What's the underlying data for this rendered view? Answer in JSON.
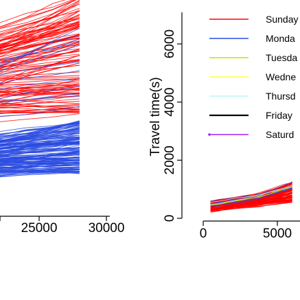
{
  "colors": {
    "Sunday": "#ff0000",
    "Monday": "#2a4be0",
    "Tuesday": "#c8e000",
    "Wednesday": "#ffff40",
    "Thursday": "#b8f5f5",
    "Friday": "#000000",
    "Saturday": "#a020f0"
  },
  "chart_data": [
    {
      "type": "line",
      "title": "",
      "xlabel": "",
      "ylabel": "",
      "xlim": [
        0,
        31000
      ],
      "x_ticks": [
        {
          "value": 25000,
          "label": "25000"
        },
        {
          "value": 30000,
          "label": "30000"
        }
      ],
      "series": [
        {
          "color": "#ff0000",
          "x_range": [
            0,
            28000
          ],
          "y_start_range": [
            1050,
            1950
          ],
          "y_end_range": [
            1500,
            3050
          ]
        },
        {
          "color": "#2a4be0",
          "x_range": [
            0,
            28000
          ],
          "y_start_range": [
            420,
            1050
          ],
          "y_end_range": [
            700,
            1400
          ]
        }
      ]
    },
    {
      "type": "line",
      "title": "",
      "xlabel": "",
      "ylabel": "Travel time(s)",
      "ylim": [
        0,
        7000
      ],
      "y_ticks": [
        {
          "value": 0,
          "label": "0"
        },
        {
          "value": 2000,
          "label": "2000"
        },
        {
          "value": 4000,
          "label": "4000"
        },
        {
          "value": 6000,
          "label": "6000"
        }
      ],
      "x_ticks": [
        {
          "value": 0,
          "label": "0"
        },
        {
          "value": 5000,
          "label": "5000"
        }
      ],
      "legend_position": "top-right",
      "legend": [
        {
          "label": "Sunday",
          "color": "#ff0000"
        },
        {
          "label": "Monda",
          "color": "#2a4be0"
        },
        {
          "label": "Tuesda",
          "color": "#c8e000"
        },
        {
          "label": "Wedne",
          "color": "#ffff40"
        },
        {
          "label": "Thursd",
          "color": "#b8f5f5"
        },
        {
          "label": "Friday",
          "color": "#000000"
        },
        {
          "label": "Saturd",
          "color": "#a020f0"
        }
      ],
      "series": [
        {
          "name": "Sunday",
          "color": "#ff0000",
          "x_range": [
            500,
            6000
          ],
          "y_start_range": [
            200,
            600
          ],
          "y_end_range": [
            500,
            1250
          ]
        }
      ]
    }
  ]
}
